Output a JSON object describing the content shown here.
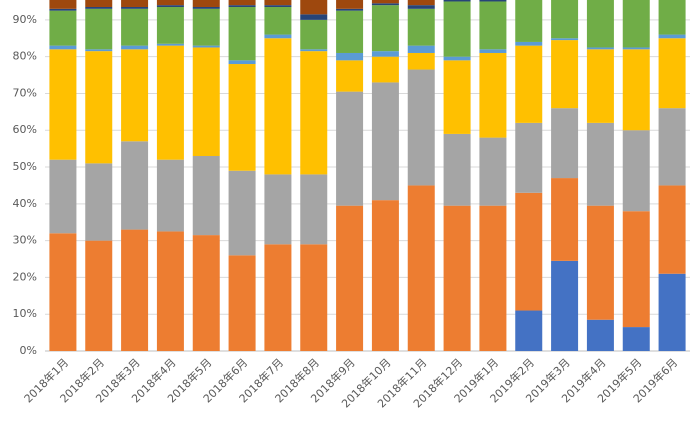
{
  "chart_data": {
    "type": "stacked_bar",
    "categories": [
      "2018年1月",
      "2018年2月",
      "2018年3月",
      "2018年4月",
      "2018年5月",
      "2018年6月",
      "2018年7月",
      "2018年8月",
      "2018年9月",
      "2018年10月",
      "2018年11月",
      "2018年12月",
      "2019年1月",
      "2019年2月",
      "2019年3月",
      "2019年4月",
      "2019年5月",
      "2019年6月"
    ],
    "series": [
      {
        "color": "#4472c4",
        "values": [
          0,
          0,
          0,
          0,
          0,
          0,
          0,
          0,
          0,
          0,
          0,
          0,
          0,
          11,
          24.5,
          8.5,
          6.5,
          21
        ]
      },
      {
        "color": "#ed7d31",
        "values": [
          32,
          30,
          33,
          32.5,
          31.5,
          26,
          29,
          29,
          39.5,
          41,
          45,
          39.5,
          39.5,
          32,
          22.5,
          31,
          31.5,
          24
        ]
      },
      {
        "color": "#a5a5a5",
        "values": [
          20,
          21,
          24,
          19.5,
          21.5,
          23,
          19,
          19,
          31,
          32,
          31.5,
          19.5,
          18.5,
          19,
          19,
          22.5,
          22,
          21
        ]
      },
      {
        "color": "#ffc000",
        "values": [
          30,
          30.5,
          25,
          31,
          29.5,
          29,
          37,
          33.5,
          8.5,
          7,
          4.5,
          20,
          23,
          21,
          18.5,
          20,
          22,
          19
        ]
      },
      {
        "color": "#5b9bd5",
        "values": [
          1,
          0.5,
          1,
          0.5,
          0.5,
          1,
          1,
          0.5,
          2,
          1.5,
          2,
          1,
          1,
          1,
          0.5,
          0.5,
          0.5,
          1
        ]
      },
      {
        "color": "#70ad47",
        "values": [
          9.5,
          11,
          10,
          10,
          10,
          14.5,
          7.5,
          8,
          11.5,
          12.5,
          10,
          15,
          13,
          16,
          15,
          17.5,
          17.5,
          14
        ]
      },
      {
        "color": "#264478",
        "values": [
          0.5,
          0.5,
          0.5,
          0.5,
          0.5,
          0.5,
          0.5,
          1.5,
          0.5,
          0.5,
          1,
          0.5,
          0.5,
          0,
          0,
          0,
          0,
          0
        ]
      },
      {
        "color": "#9e480e",
        "values": [
          7,
          6.5,
          6.5,
          6,
          6.5,
          6,
          6,
          8.5,
          7,
          5.5,
          6,
          4.5,
          4.5,
          0,
          0,
          0,
          0,
          0
        ]
      }
    ],
    "ylim": [
      0,
      95.4
    ],
    "yticks": [
      {
        "value": 0,
        "label": "0%"
      },
      {
        "value": 10,
        "label": "10%"
      },
      {
        "value": 20,
        "label": "20%"
      },
      {
        "value": 30,
        "label": "30%"
      },
      {
        "value": 40,
        "label": "40%"
      },
      {
        "value": 50,
        "label": "50%"
      },
      {
        "value": 60,
        "label": "60%"
      },
      {
        "value": 70,
        "label": "70%"
      },
      {
        "value": 80,
        "label": "80%"
      },
      {
        "value": 90,
        "label": "90%"
      }
    ],
    "grid": true
  }
}
